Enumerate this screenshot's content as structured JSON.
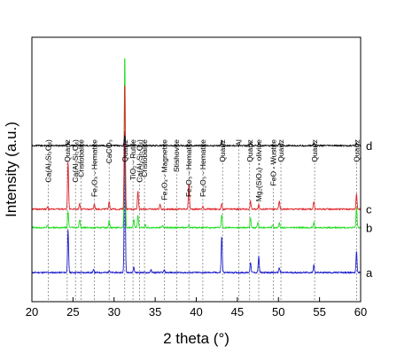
{
  "chart_data": {
    "type": "line",
    "xlabel": "2 theta (°)",
    "ylabel": "Intensity (a.u.)",
    "xlim": [
      20,
      60
    ],
    "xticks": [
      20,
      25,
      30,
      35,
      40,
      45,
      50,
      55,
      60
    ],
    "y_tick_labels": "none",
    "grid": false,
    "series": [
      {
        "name": "a",
        "color": "#1f1fcc",
        "baseline": 0.11,
        "peaks": [
          [
            24.4,
            0.16
          ],
          [
            27.5,
            0.01
          ],
          [
            29.4,
            0.01
          ],
          [
            31.3,
            0.56
          ],
          [
            32.4,
            0.02
          ],
          [
            34.5,
            0.01
          ],
          [
            36.1,
            0.01
          ],
          [
            43.1,
            0.14
          ],
          [
            46.6,
            0.04
          ],
          [
            47.6,
            0.06
          ],
          [
            50.1,
            0.02
          ],
          [
            54.3,
            0.03
          ],
          [
            59.5,
            0.08
          ]
        ]
      },
      {
        "name": "b",
        "color": "#22dd22",
        "baseline": 0.28,
        "peaks": [
          [
            21.9,
            0.01
          ],
          [
            24.4,
            0.06
          ],
          [
            25.8,
            0.03
          ],
          [
            29.4,
            0.03
          ],
          [
            31.3,
            0.67
          ],
          [
            32.4,
            0.03
          ],
          [
            32.9,
            0.05
          ],
          [
            33.8,
            0.01
          ],
          [
            35.9,
            0.01
          ],
          [
            39.1,
            0.01
          ],
          [
            43.1,
            0.05
          ],
          [
            46.6,
            0.04
          ],
          [
            47.5,
            0.02
          ],
          [
            49.3,
            0.01
          ],
          [
            50.1,
            0.02
          ],
          [
            54.3,
            0.02
          ],
          [
            59.5,
            0.08
          ]
        ]
      },
      {
        "name": "c",
        "color": "#e0242a",
        "baseline": 0.35,
        "peaks": [
          [
            21.9,
            0.01
          ],
          [
            24.4,
            0.18
          ],
          [
            25.8,
            0.02
          ],
          [
            27.6,
            0.02
          ],
          [
            29.4,
            0.03
          ],
          [
            31.3,
            0.49
          ],
          [
            32.9,
            0.07
          ],
          [
            35.6,
            0.02
          ],
          [
            39.1,
            0.1
          ],
          [
            40.8,
            0.01
          ],
          [
            43.1,
            0.02
          ],
          [
            46.6,
            0.03
          ],
          [
            47.6,
            0.02
          ],
          [
            50.1,
            0.03
          ],
          [
            54.3,
            0.03
          ],
          [
            59.5,
            0.06
          ]
        ]
      },
      {
        "name": "d",
        "color": "#111111",
        "baseline": 0.59,
        "peaks": [
          [
            24.4,
            0.01
          ],
          [
            31.3,
            0.04
          ],
          [
            43.1,
            0.02
          ],
          [
            46.6,
            0.01
          ],
          [
            47.6,
            0.01
          ],
          [
            50.1,
            0.01
          ],
          [
            54.3,
            0.01
          ],
          [
            59.5,
            0.01
          ]
        ]
      }
    ],
    "annotations": [
      {
        "label": "Ca(Al₂Si₂O₈)",
        "x": 22.0,
        "color": "#000000"
      },
      {
        "label": "Quartz",
        "x": 24.3,
        "color": "#000000"
      },
      {
        "label": "Ca(Al₂Si₂O₈)",
        "x": 25.3,
        "color": "#000000"
      },
      {
        "label": "Cristobalite",
        "x": 26.0,
        "color": "#000000"
      },
      {
        "label": "Fe₂O₃ - Hematite",
        "x": 27.6,
        "color": "#000000"
      },
      {
        "label": "CaCO₃",
        "x": 29.4,
        "color": "#000000"
      },
      {
        "label": "Quartz",
        "x": 31.3,
        "color": "#22aa22"
      },
      {
        "label": "TiO₂ - Rutile",
        "x": 32.3,
        "color": "#000000"
      },
      {
        "label": "Ca(Al₂Si₂O₈)",
        "x": 33.1,
        "color": "#000000"
      },
      {
        "label": "Cristobalite",
        "x": 33.7,
        "color": "#000000"
      },
      {
        "label": "Fe₃O₄ - Magnetite",
        "x": 36.1,
        "color": "#000000"
      },
      {
        "label": "Stishovite",
        "x": 37.6,
        "color": "#000000"
      },
      {
        "label": "Fe₂O₃ - Hematite",
        "x": 39.1,
        "color": "#000000"
      },
      {
        "label": "Fe₂O₃ - Hematite",
        "x": 40.8,
        "color": "#000000"
      },
      {
        "label": "Quartz",
        "x": 43.2,
        "color": "#000000"
      },
      {
        "label": "Al",
        "x": 45.2,
        "color": "#000000"
      },
      {
        "label": "Quartz",
        "x": 46.5,
        "color": "#000000"
      },
      {
        "label": "Mg₂(SiO₄) - olivine",
        "x": 47.6,
        "color": "#000000"
      },
      {
        "label": "FeO - Wustite",
        "x": 49.4,
        "color": "#000000"
      },
      {
        "label": "Quartz",
        "x": 50.3,
        "color": "#000000"
      },
      {
        "label": "Quartz",
        "x": 54.4,
        "color": "#000000"
      },
      {
        "label": "Quartz",
        "x": 59.5,
        "color": "#000000"
      }
    ]
  }
}
